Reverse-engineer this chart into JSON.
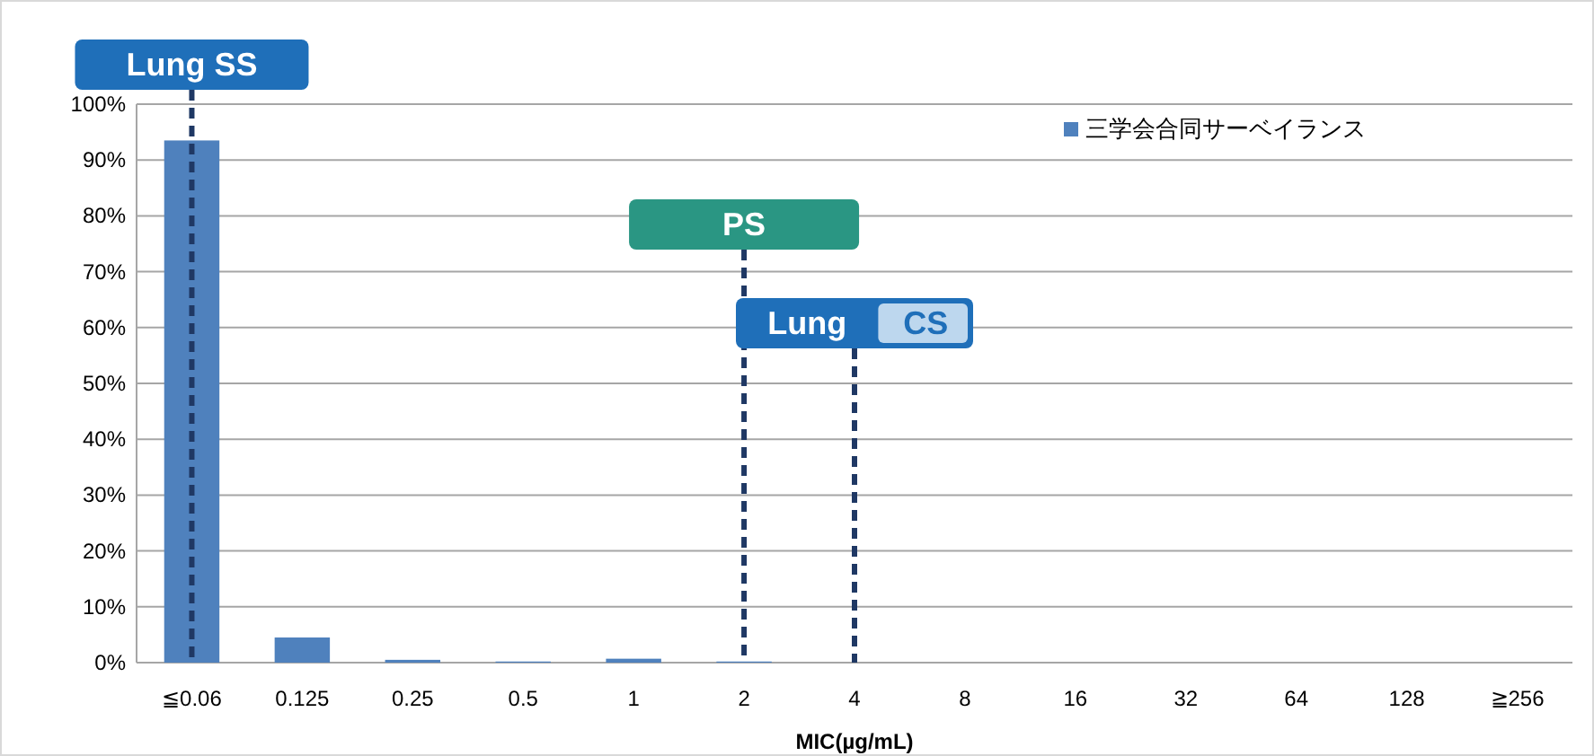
{
  "chart_data": {
    "type": "bar",
    "xlabel": "MIC(µg/mL)",
    "categories": [
      "≦0.06",
      "0.125",
      "0.25",
      "0.5",
      "1",
      "2",
      "4",
      "8",
      "16",
      "32",
      "64",
      "128",
      "≧256"
    ],
    "series": [
      {
        "name": "三学会合同サーベイランス",
        "color": "#4f81bd",
        "values": [
          93.5,
          4.5,
          0.5,
          0.2,
          0.7,
          0.2,
          0,
          0,
          0,
          0,
          0,
          0,
          0
        ]
      }
    ],
    "ylim": [
      0,
      100
    ],
    "yticks": [
      {
        "value": 0,
        "label": "0%"
      },
      {
        "value": 10,
        "label": "10%"
      },
      {
        "value": 20,
        "label": "20%"
      },
      {
        "value": 30,
        "label": "30%"
      },
      {
        "value": 40,
        "label": "40%"
      },
      {
        "value": 50,
        "label": "50%"
      },
      {
        "value": 60,
        "label": "60%"
      },
      {
        "value": 70,
        "label": "70%"
      },
      {
        "value": 80,
        "label": "80%"
      },
      {
        "value": 90,
        "label": "90%"
      },
      {
        "value": 100,
        "label": "100%"
      }
    ],
    "grid": "y",
    "legend": "top right",
    "ref_lines": [
      {
        "axis": "x",
        "value": "≦0.06",
        "label": "Lung SS",
        "color": "#1f3864",
        "line_style": "dashed"
      },
      {
        "axis": "x",
        "value": "2",
        "label": "PS",
        "color": "#1f3864",
        "line_style": "dashed"
      },
      {
        "axis": "x",
        "value": "4",
        "label": "Lung CS",
        "color": "#1f3864",
        "line_style": "dashed"
      }
    ]
  }
}
